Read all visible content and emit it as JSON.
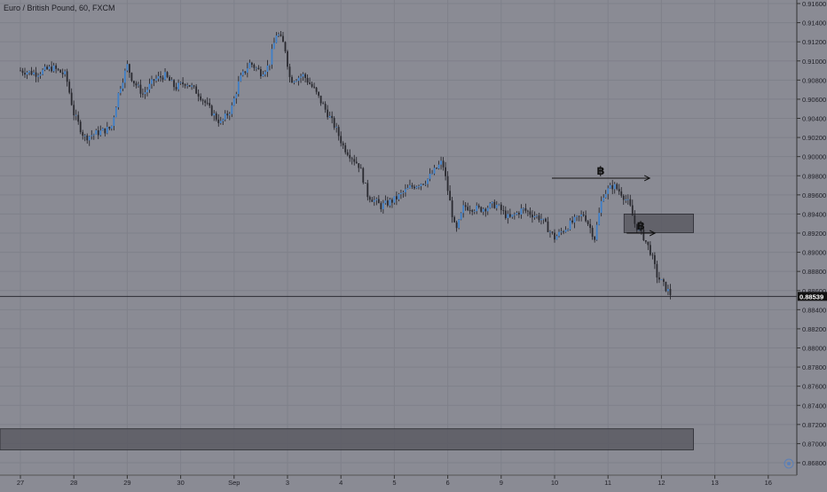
{
  "header": {
    "title": "Euro / British Pound, 60, FXCM"
  },
  "colors": {
    "background": "#8a8b94",
    "grid": "#7f808a",
    "candle_up": "#3f7fc7",
    "candle_down": "#2a2a30",
    "price_line": "#2b2b33",
    "zone_fill": "#5a5b63",
    "arrow": "#111111",
    "price_label_bg": "#111111",
    "price_label_text": "#ffffff"
  },
  "chart_data": {
    "type": "candlestick",
    "ylim": [
      0.868,
      0.916
    ],
    "y_ticks": [
      "0.91600",
      "0.91400",
      "0.91200",
      "0.91000",
      "0.90800",
      "0.90600",
      "0.90400",
      "0.90200",
      "0.90000",
      "0.89800",
      "0.89600",
      "0.89400",
      "0.89200",
      "0.89000",
      "0.88800",
      "0.88600",
      "0.88400",
      "0.88200",
      "0.88000",
      "0.87800",
      "0.87600",
      "0.87400",
      "0.87200",
      "0.87000",
      "0.86800"
    ],
    "x_labels": [
      "27",
      "28",
      "29",
      "30",
      "Sep",
      "3",
      "4",
      "5",
      "6",
      "9",
      "10",
      "11",
      "12",
      "13",
      "16"
    ],
    "current_price": "0.88539",
    "close_path": [
      {
        "day": 0.0,
        "price": 0.909
      },
      {
        "day": 0.3,
        "price": 0.9087
      },
      {
        "day": 0.6,
        "price": 0.9093
      },
      {
        "day": 0.85,
        "price": 0.9085
      },
      {
        "day": 1.0,
        "price": 0.9045
      },
      {
        "day": 1.2,
        "price": 0.902
      },
      {
        "day": 1.45,
        "price": 0.9025
      },
      {
        "day": 1.7,
        "price": 0.903
      },
      {
        "day": 1.85,
        "price": 0.907
      },
      {
        "day": 2.0,
        "price": 0.9095
      },
      {
        "day": 2.1,
        "price": 0.908
      },
      {
        "day": 2.3,
        "price": 0.9065
      },
      {
        "day": 2.5,
        "price": 0.908
      },
      {
        "day": 2.7,
        "price": 0.9085
      },
      {
        "day": 2.9,
        "price": 0.9072
      },
      {
        "day": 3.1,
        "price": 0.9078
      },
      {
        "day": 3.35,
        "price": 0.9065
      },
      {
        "day": 3.6,
        "price": 0.9045
      },
      {
        "day": 3.75,
        "price": 0.9035
      },
      {
        "day": 3.95,
        "price": 0.905
      },
      {
        "day": 4.1,
        "price": 0.908
      },
      {
        "day": 4.3,
        "price": 0.9098
      },
      {
        "day": 4.5,
        "price": 0.9088
      },
      {
        "day": 4.65,
        "price": 0.9095
      },
      {
        "day": 4.8,
        "price": 0.913
      },
      {
        "day": 4.95,
        "price": 0.9115
      },
      {
        "day": 5.05,
        "price": 0.908
      },
      {
        "day": 5.3,
        "price": 0.9085
      },
      {
        "day": 5.5,
        "price": 0.907
      },
      {
        "day": 5.7,
        "price": 0.905
      },
      {
        "day": 5.9,
        "price": 0.903
      },
      {
        "day": 6.05,
        "price": 0.901
      },
      {
        "day": 6.2,
        "price": 0.9
      },
      {
        "day": 6.35,
        "price": 0.899
      },
      {
        "day": 6.5,
        "price": 0.896
      },
      {
        "day": 6.75,
        "price": 0.8948
      },
      {
        "day": 7.0,
        "price": 0.8955
      },
      {
        "day": 7.3,
        "price": 0.8968
      },
      {
        "day": 7.6,
        "price": 0.8975
      },
      {
        "day": 7.9,
        "price": 0.8995
      },
      {
        "day": 8.05,
        "price": 0.895
      },
      {
        "day": 8.15,
        "price": 0.892
      },
      {
        "day": 8.3,
        "price": 0.8948
      },
      {
        "day": 8.6,
        "price": 0.8945
      },
      {
        "day": 8.9,
        "price": 0.895
      },
      {
        "day": 9.15,
        "price": 0.8935
      },
      {
        "day": 9.4,
        "price": 0.8945
      },
      {
        "day": 9.75,
        "price": 0.8935
      },
      {
        "day": 10.0,
        "price": 0.8915
      },
      {
        "day": 10.3,
        "price": 0.893
      },
      {
        "day": 10.55,
        "price": 0.894
      },
      {
        "day": 10.75,
        "price": 0.8915
      },
      {
        "day": 10.9,
        "price": 0.896
      },
      {
        "day": 11.1,
        "price": 0.897
      },
      {
        "day": 11.25,
        "price": 0.8962
      },
      {
        "day": 11.4,
        "price": 0.895
      },
      {
        "day": 11.5,
        "price": 0.893
      },
      {
        "day": 11.65,
        "price": 0.8918
      },
      {
        "day": 11.8,
        "price": 0.89
      },
      {
        "day": 11.92,
        "price": 0.8875
      },
      {
        "day": 12.05,
        "price": 0.8865
      },
      {
        "day": 12.2,
        "price": 0.8854
      }
    ],
    "annotations": [
      {
        "type": "horizontal-ray",
        "label": "฿",
        "start_day": 9.95,
        "end_day": 11.78,
        "price": 0.89775
      },
      {
        "type": "horizontal-ray",
        "label": "฿",
        "start_day": 11.35,
        "end_day": 11.88,
        "price": 0.892
      },
      {
        "type": "zone",
        "start_day": 11.3,
        "end_day": 12.6,
        "top": 0.894,
        "bottom": 0.89205
      },
      {
        "type": "zone",
        "start_day": -0.5,
        "end_day": 12.6,
        "top": 0.87155,
        "bottom": 0.86935
      }
    ]
  }
}
